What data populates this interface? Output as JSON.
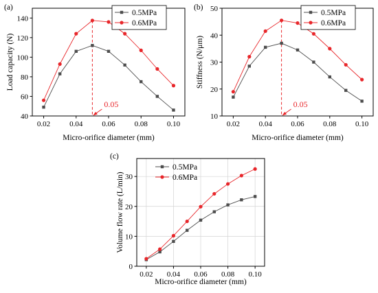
{
  "colors": {
    "series_0_5": "#4d4d4d",
    "series_0_6": "#e8262a",
    "annotation": "#e8262a"
  },
  "chart_data": [
    {
      "panel": "(a)",
      "type": "line",
      "xlabel": "Micro-orifice diameter (mm)",
      "ylabel": "Load capacity (N)",
      "xlim": [
        0.013,
        0.107
      ],
      "ylim": [
        40,
        150
      ],
      "xticks": [
        0.02,
        0.04,
        0.06,
        0.08,
        0.1
      ],
      "xtick_labels": [
        "0.02",
        "0.04",
        "0.06",
        "0.08",
        "0.10"
      ],
      "yticks": [
        40,
        60,
        80,
        100,
        120,
        140
      ],
      "ytick_labels": [
        "40",
        "60",
        "80",
        "100",
        "120",
        "140"
      ],
      "x": [
        0.02,
        0.03,
        0.04,
        0.05,
        0.06,
        0.07,
        0.08,
        0.09,
        0.1
      ],
      "series": [
        {
          "name": "0.5MPa",
          "marker": "square",
          "values": [
            49,
            83,
            106,
            112,
            106,
            92,
            75,
            60,
            46
          ]
        },
        {
          "name": "0.6MPa",
          "marker": "circle",
          "values": [
            56,
            93,
            124,
            137.5,
            136,
            124,
            107,
            88,
            71
          ]
        }
      ],
      "legend": "top-right",
      "grid": false,
      "annotation": {
        "x": 0.05,
        "text": "0.05"
      }
    },
    {
      "panel": "(b)",
      "type": "line",
      "xlabel": "Micro-orifice diameter (mm)",
      "ylabel": "Stiffness (N/μm)",
      "xlim": [
        0.013,
        0.107
      ],
      "ylim": [
        10,
        50
      ],
      "xticks": [
        0.02,
        0.04,
        0.06,
        0.08,
        0.1
      ],
      "xtick_labels": [
        "0.02",
        "0.04",
        "0.06",
        "0.08",
        "0.10"
      ],
      "yticks": [
        10,
        20,
        30,
        40,
        50
      ],
      "ytick_labels": [
        "10",
        "20",
        "30",
        "40",
        "50"
      ],
      "x": [
        0.02,
        0.03,
        0.04,
        0.05,
        0.06,
        0.07,
        0.08,
        0.09,
        0.1
      ],
      "series": [
        {
          "name": "0.5MPa",
          "marker": "square",
          "values": [
            17,
            28.5,
            35.5,
            37,
            34.5,
            30,
            24.5,
            19.5,
            15.5
          ]
        },
        {
          "name": "0.6MPa",
          "marker": "circle",
          "values": [
            19,
            32,
            41.5,
            45.5,
            44.5,
            40.5,
            35,
            29,
            23.5
          ]
        }
      ],
      "legend": "top-right",
      "grid": false,
      "annotation": {
        "x": 0.05,
        "text": "0.05"
      }
    },
    {
      "panel": "(c)",
      "type": "line",
      "xlabel": "Micro-orifice diameter (mm)",
      "ylabel": "Volume flow rate (L/min)",
      "xlim": [
        0.013,
        0.107
      ],
      "ylim": [
        0,
        36
      ],
      "xticks": [
        0.02,
        0.04,
        0.06,
        0.08,
        0.1
      ],
      "xtick_labels": [
        "0.02",
        "0.04",
        "0.06",
        "0.08",
        "0.10"
      ],
      "yticks": [
        0,
        10,
        20,
        30
      ],
      "ytick_labels": [
        "0",
        "10",
        "20",
        "30"
      ],
      "x": [
        0.02,
        0.03,
        0.04,
        0.05,
        0.06,
        0.07,
        0.08,
        0.09,
        0.1
      ],
      "series": [
        {
          "name": "0.5MPa",
          "marker": "square",
          "values": [
            2.2,
            4.8,
            8.3,
            12,
            15.4,
            18.2,
            20.5,
            22.2,
            23.3
          ]
        },
        {
          "name": "0.6MPa",
          "marker": "circle",
          "values": [
            2.5,
            5.7,
            10.2,
            15,
            19.9,
            24.2,
            27.5,
            30.3,
            32.5
          ]
        }
      ],
      "legend": "top-left",
      "grid": true
    }
  ]
}
